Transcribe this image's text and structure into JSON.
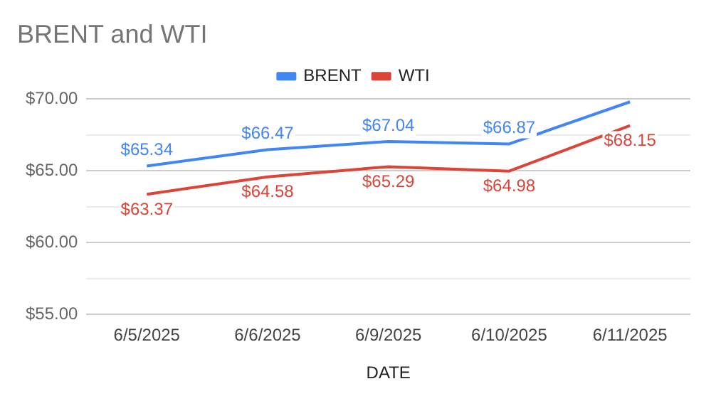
{
  "chart_data": {
    "type": "line",
    "title": "BRENT and WTI",
    "xlabel": "DATE",
    "categories": [
      "6/5/2025",
      "6/6/2025",
      "6/9/2025",
      "6/10/2025",
      "6/11/2025"
    ],
    "series": [
      {
        "name": "BRENT",
        "color": "#4285f4",
        "values": [
          65.34,
          66.47,
          67.04,
          66.87,
          69.8
        ],
        "value_labels": [
          "$65.34",
          "$66.47",
          "$67.04",
          "$66.87",
          null
        ]
      },
      {
        "name": "WTI",
        "color": "#db4437",
        "values": [
          63.37,
          64.58,
          65.29,
          64.98,
          68.15
        ],
        "value_labels": [
          "$63.37",
          "$64.58",
          "$65.29",
          "$64.98",
          "$68.15"
        ]
      }
    ],
    "ylim": [
      55,
      70
    ],
    "yticks": [
      {
        "value": 55,
        "label": "$55.00"
      },
      {
        "value": 57.5,
        "label": null
      },
      {
        "value": 60,
        "label": "$60.00"
      },
      {
        "value": 62.5,
        "label": null
      },
      {
        "value": 65,
        "label": "$65.00"
      },
      {
        "value": 67.5,
        "label": null
      },
      {
        "value": 70,
        "label": "$70.00"
      }
    ],
    "grid": "y",
    "legend": "top",
    "marker": "none",
    "line_style": "solid"
  }
}
